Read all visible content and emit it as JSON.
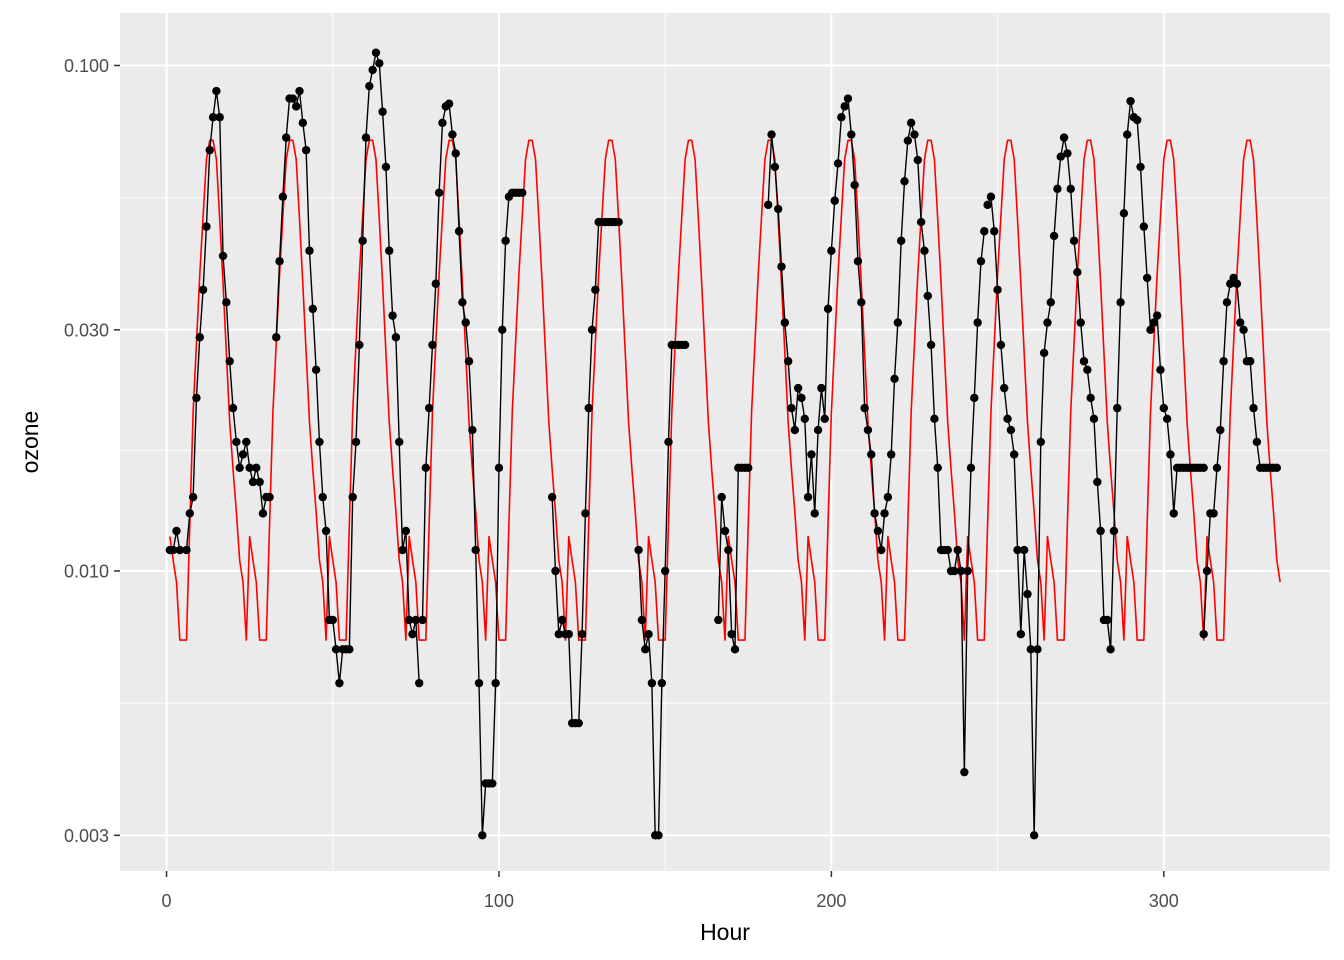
{
  "colors": {
    "panel_background": "#ebebeb",
    "grid_major": "#ffffff",
    "observed": "#000000",
    "fitted": "#ff0000",
    "tick_text": "#4d4d4d"
  },
  "chart_data": {
    "type": "line",
    "title": "",
    "xlabel": "Hour",
    "ylabel": "ozone",
    "xlim": [
      -14,
      350
    ],
    "ylim": [
      0.00255,
      0.127
    ],
    "y_scale": "log10",
    "grid": true,
    "x_ticks": [
      0,
      100,
      200,
      300
    ],
    "x_tick_labels": [
      "0",
      "100",
      "200",
      "300"
    ],
    "y_ticks": [
      0.003,
      0.01,
      0.03,
      0.1
    ],
    "y_tick_labels": [
      "0.003",
      "0.010",
      "0.030",
      "0.100"
    ],
    "series": [
      {
        "style": "line+points",
        "segments": [
          {
            "x": [
              1,
              2,
              3,
              4,
              6,
              7,
              8,
              9,
              10,
              11,
              12,
              13,
              14,
              15,
              16,
              17,
              18,
              19,
              20,
              21,
              22,
              23,
              24,
              25,
              26,
              27,
              28,
              29,
              30,
              31
            ],
            "y": [
              0.011,
              0.011,
              0.012,
              0.011,
              0.011,
              0.013,
              0.014,
              0.022,
              0.029,
              0.036,
              0.048,
              0.068,
              0.079,
              0.089,
              0.079,
              0.042,
              0.034,
              0.026,
              0.021,
              0.018,
              0.016,
              0.017,
              0.018,
              0.016,
              0.015,
              0.016,
              0.015,
              0.013,
              0.014,
              0.014
            ]
          },
          {
            "x": [
              33,
              34,
              35,
              36,
              37,
              38,
              39,
              40,
              41,
              42,
              43,
              44,
              45,
              46,
              47,
              48,
              49,
              50,
              51,
              52,
              53,
              54,
              55,
              56,
              57,
              58,
              59,
              60,
              61,
              62,
              63,
              64,
              65,
              66,
              67,
              68,
              69,
              70,
              71,
              72,
              73,
              74,
              75,
              76
            ],
            "y": [
              0.029,
              0.041,
              0.055,
              0.072,
              0.086,
              0.086,
              0.083,
              0.089,
              0.077,
              0.068,
              0.043,
              0.033,
              0.025,
              0.018,
              0.014,
              0.012,
              0.008,
              0.008,
              0.007,
              0.006,
              0.007,
              0.007,
              0.007,
              0.014,
              0.018,
              0.028,
              0.045,
              0.072,
              0.091,
              0.098,
              0.106,
              0.101,
              0.081,
              0.063,
              0.043,
              0.032,
              0.029,
              0.018,
              0.011,
              0.012,
              0.008,
              0.0075,
              0.008,
              0.006
            ]
          },
          {
            "x": [
              77,
              78,
              79,
              80,
              81,
              82,
              83,
              84,
              85,
              86,
              87,
              88,
              89,
              90,
              91,
              92,
              93,
              94,
              95,
              96,
              97,
              98,
              99,
              100,
              101,
              102,
              103,
              104,
              105,
              106,
              107
            ],
            "y": [
              0.008,
              0.016,
              0.021,
              0.028,
              0.037,
              0.056,
              0.077,
              0.083,
              0.084,
              0.073,
              0.067,
              0.047,
              0.034,
              0.031,
              0.026,
              0.019,
              0.011,
              0.006,
              0.003,
              0.0038,
              0.0038,
              0.0038,
              0.006,
              0.016,
              0.03,
              0.045,
              0.055,
              0.056,
              0.056,
              0.056,
              0.056
            ]
          },
          {
            "x": [
              116,
              117,
              118,
              119,
              120,
              121,
              122,
              123,
              124,
              125,
              126,
              127,
              128,
              129,
              130,
              131,
              132,
              133,
              134,
              135,
              136
            ],
            "y": [
              0.014,
              0.01,
              0.0075,
              0.008,
              0.0075,
              0.0075,
              0.005,
              0.005,
              0.005,
              0.0075,
              0.013,
              0.021,
              0.03,
              0.036,
              0.049,
              0.049,
              0.049,
              0.049,
              0.049,
              0.049,
              0.049
            ]
          },
          {
            "x": [
              142,
              143,
              144,
              145,
              146,
              147,
              148,
              149,
              150,
              151,
              152,
              153,
              154,
              155,
              156
            ],
            "y": [
              0.011,
              0.008,
              0.007,
              0.0075,
              0.006,
              0.003,
              0.003,
              0.006,
              0.01,
              0.018,
              0.028,
              0.028,
              0.028,
              0.028,
              0.028
            ]
          },
          {
            "x": [
              166,
              167,
              168,
              169,
              170,
              171,
              172,
              173,
              174,
              175
            ],
            "y": [
              0.008,
              0.014,
              0.012,
              0.011,
              0.0075,
              0.007,
              0.016,
              0.016,
              0.016,
              0.016
            ]
          },
          {
            "x": [
              181,
              182,
              183,
              184,
              185,
              186,
              187,
              188,
              189,
              190,
              191,
              192,
              193,
              194,
              195,
              196,
              197,
              198,
              199,
              200,
              201,
              202,
              203,
              204,
              205,
              206,
              207,
              208,
              209,
              210,
              211,
              212,
              213,
              214,
              215,
              216,
              217,
              218,
              219,
              220,
              221,
              222,
              223,
              224,
              225,
              226,
              227,
              228,
              229,
              230,
              231,
              232,
              233,
              234,
              235,
              236,
              237,
              238,
              239,
              240,
              241,
              242,
              243,
              244,
              245,
              246
            ],
            "y": [
              0.053,
              0.073,
              0.063,
              0.052,
              0.04,
              0.031,
              0.026,
              0.021,
              0.019,
              0.023,
              0.022,
              0.02,
              0.014,
              0.017,
              0.013,
              0.019,
              0.023,
              0.02,
              0.033,
              0.043,
              0.054,
              0.064,
              0.079,
              0.083,
              0.086,
              0.073,
              0.058,
              0.041,
              0.034,
              0.021,
              0.019,
              0.017,
              0.013,
              0.012,
              0.011,
              0.013,
              0.014,
              0.017,
              0.024,
              0.031,
              0.045,
              0.059,
              0.071,
              0.077,
              0.073,
              0.065,
              0.049,
              0.043,
              0.035,
              0.028,
              0.02,
              0.016,
              0.011,
              0.011,
              0.011,
              0.01,
              0.01,
              0.011,
              0.01,
              0.004,
              0.01,
              0.016,
              0.022,
              0.031,
              0.041,
              0.047
            ]
          },
          {
            "x": [
              247,
              248,
              249,
              250,
              251,
              252,
              253,
              254,
              255,
              256,
              257,
              258,
              259,
              260,
              261,
              262,
              263,
              264,
              265,
              266,
              267,
              268,
              269,
              270,
              271,
              272,
              273,
              274,
              275,
              276,
              277,
              278,
              279,
              280,
              281,
              282,
              283,
              284,
              285,
              286,
              287,
              288,
              289,
              290,
              291,
              292,
              293,
              294,
              295,
              296,
              297,
              298,
              299,
              300,
              301,
              302,
              303,
              304,
              305,
              306,
              307,
              308,
              309,
              310,
              311,
              312
            ],
            "y": [
              0.053,
              0.055,
              0.047,
              0.036,
              0.028,
              0.023,
              0.02,
              0.019,
              0.017,
              0.011,
              0.0075,
              0.011,
              0.009,
              0.007,
              0.003,
              0.007,
              0.018,
              0.027,
              0.031,
              0.034,
              0.046,
              0.057,
              0.066,
              0.072,
              0.067,
              0.057,
              0.045,
              0.039,
              0.031,
              0.026,
              0.025,
              0.022,
              0.02,
              0.015,
              0.012,
              0.008,
              0.008,
              0.007,
              0.012,
              0.021,
              0.034,
              0.051,
              0.073,
              0.085,
              0.079,
              0.078,
              0.063,
              0.048,
              0.038,
              0.03,
              0.031,
              0.032,
              0.025,
              0.021,
              0.02,
              0.017,
              0.013,
              0.016,
              0.016,
              0.016,
              0.016,
              0.016,
              0.016,
              0.016,
              0.016,
              0.016
            ]
          },
          {
            "x": [
              312,
              313,
              314,
              315,
              316,
              317,
              318,
              319,
              320,
              321,
              322,
              323,
              324,
              325,
              326,
              327,
              328,
              329,
              330,
              331,
              332,
              333,
              334
            ],
            "y": [
              0.0075,
              0.01,
              0.013,
              0.013,
              0.016,
              0.019,
              0.026,
              0.034,
              0.037,
              0.038,
              0.037,
              0.031,
              0.03,
              0.026,
              0.026,
              0.021,
              0.018,
              0.016,
              0.016,
              0.016,
              0.016,
              0.016,
              0.016
            ]
          }
        ]
      },
      {
        "style": "line",
        "period": 24,
        "cycle_start": 1,
        "cycle_end": 335,
        "cycle_profile": [
          {
            "h": 0,
            "y": 0.0117
          },
          {
            "h": 1,
            "y": 0.0105
          },
          {
            "h": 2,
            "y": 0.0095
          },
          {
            "h": 3,
            "y": 0.0073
          },
          {
            "h": 4,
            "y": 0.0073
          },
          {
            "h": 5,
            "y": 0.0073
          },
          {
            "h": 6,
            "y": 0.0124
          },
          {
            "h": 7,
            "y": 0.0206
          },
          {
            "h": 8,
            "y": 0.0282
          },
          {
            "h": 9,
            "y": 0.0386
          },
          {
            "h": 10,
            "y": 0.0503
          },
          {
            "h": 11,
            "y": 0.0652
          },
          {
            "h": 12,
            "y": 0.0711
          },
          {
            "h": 13,
            "y": 0.0711
          },
          {
            "h": 14,
            "y": 0.0652
          },
          {
            "h": 15,
            "y": 0.0496
          },
          {
            "h": 16,
            "y": 0.037
          },
          {
            "h": 17,
            "y": 0.027
          },
          {
            "h": 18,
            "y": 0.0197
          },
          {
            "h": 19,
            "y": 0.0159
          },
          {
            "h": 20,
            "y": 0.0131
          },
          {
            "h": 21,
            "y": 0.0105
          },
          {
            "h": 22,
            "y": 0.0095
          },
          {
            "h": 23,
            "y": 0.0073
          }
        ]
      }
    ]
  }
}
